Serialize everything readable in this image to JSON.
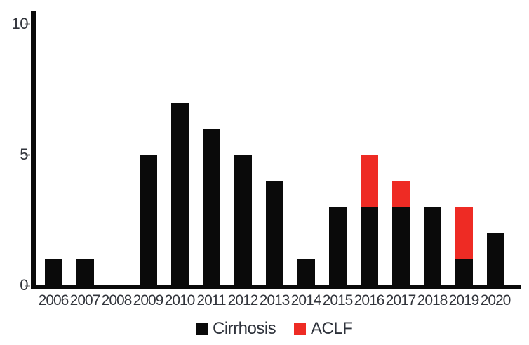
{
  "chart_data": {
    "type": "bar",
    "stacked": true,
    "title": "",
    "xlabel": "",
    "ylabel": "",
    "categories": [
      "2006",
      "2007",
      "2008",
      "2009",
      "2010",
      "2011",
      "2012",
      "2013",
      "2014",
      "2015",
      "2016",
      "2017",
      "2018",
      "2019",
      "2020"
    ],
    "series": [
      {
        "name": "Cirrhosis",
        "color": "#0a0a0a",
        "values": [
          1,
          1,
          0,
          5,
          7,
          6,
          5,
          4,
          1,
          3,
          3,
          3,
          3,
          1,
          2
        ]
      },
      {
        "name": "ACLF",
        "color": "#ee2b24",
        "values": [
          0,
          0,
          0,
          0,
          0,
          0,
          0,
          0,
          0,
          0,
          2,
          1,
          0,
          2,
          0
        ]
      }
    ],
    "ylim": [
      0,
      10
    ],
    "y_ticks": [
      0,
      5,
      10
    ],
    "grid": false,
    "legend_position": "bottom",
    "axis_color": "#0a0a0a",
    "tick_label_color": "#32353c"
  }
}
